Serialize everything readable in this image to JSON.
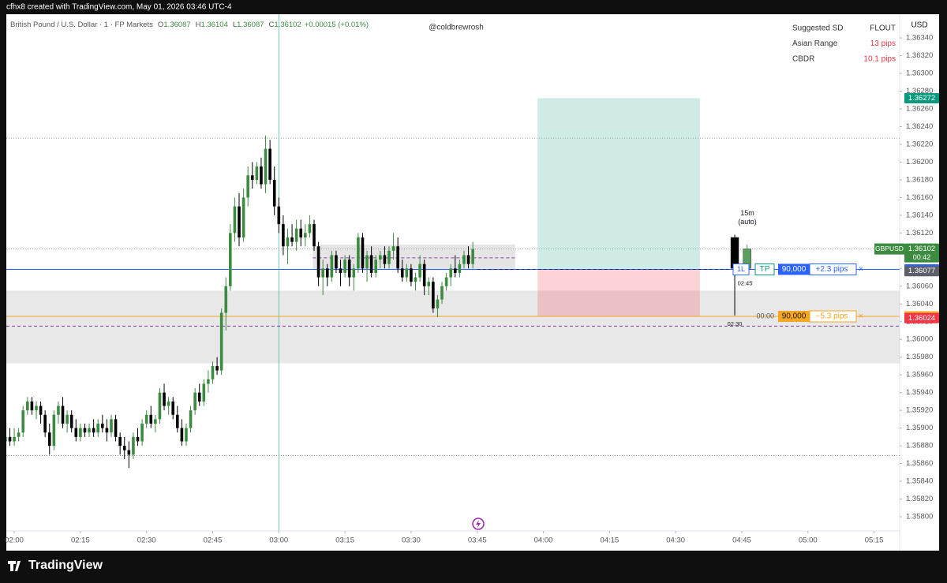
{
  "header": {
    "text": "cfhx8 created with TradingView.com, May 01, 2026 03:46 UTC-4"
  },
  "footer": {
    "logo": "TradingView"
  },
  "chart_data": {
    "type": "candlestick",
    "title": "British Pound / U.S. Dollar · 1 · FP Markets",
    "legend": [
      {
        "key": "O",
        "value": 1.36087
      },
      {
        "key": "H",
        "value": 1.36104
      },
      {
        "key": "L",
        "value": 1.36087
      },
      {
        "key": "C",
        "value": 1.36102
      }
    ],
    "change": "+0.00015 (+0.01%)",
    "watermark": "@coldbrewrosh",
    "currency": "USD",
    "info_table": [
      [
        "Suggested SD",
        "FLOUT"
      ],
      [
        "Asian Range",
        "13 pips"
      ],
      [
        "CBDR",
        "10.1 pips"
      ]
    ],
    "up_color": "#3d8b40",
    "down_color": "#000000",
    "ohlc": [
      [
        1.35885,
        1.35895,
        1.35875,
        1.3589
      ],
      [
        1.3589,
        1.359,
        1.3588,
        1.35885
      ],
      [
        1.35885,
        1.359,
        1.3588,
        1.3589
      ],
      [
        1.3589,
        1.359,
        1.35885,
        1.35895
      ],
      [
        1.35895,
        1.35925,
        1.3589,
        1.3592
      ],
      [
        1.3592,
        1.35935,
        1.35915,
        1.3593
      ],
      [
        1.3593,
        1.35935,
        1.35915,
        1.3592
      ],
      [
        1.3592,
        1.3593,
        1.3591,
        1.35925
      ],
      [
        1.35925,
        1.3593,
        1.35905,
        1.35915
      ],
      [
        1.35915,
        1.3592,
        1.3589,
        1.35895
      ],
      [
        1.35895,
        1.35905,
        1.3587,
        1.3588
      ],
      [
        1.3588,
        1.3592,
        1.35875,
        1.35915
      ],
      [
        1.35915,
        1.3593,
        1.35905,
        1.35925
      ],
      [
        1.35925,
        1.35935,
        1.359,
        1.35905
      ],
      [
        1.35905,
        1.3592,
        1.35895,
        1.35915
      ],
      [
        1.35915,
        1.3592,
        1.35895,
        1.359
      ],
      [
        1.359,
        1.3591,
        1.35885,
        1.3589
      ],
      [
        1.3589,
        1.35905,
        1.35885,
        1.359
      ],
      [
        1.359,
        1.35905,
        1.3589,
        1.35895
      ],
      [
        1.35895,
        1.35905,
        1.3589,
        1.359
      ],
      [
        1.359,
        1.3591,
        1.3589,
        1.35895
      ],
      [
        1.35895,
        1.3591,
        1.3589,
        1.35905
      ],
      [
        1.35905,
        1.35915,
        1.35895,
        1.359
      ],
      [
        1.359,
        1.3591,
        1.35885,
        1.35895
      ],
      [
        1.35895,
        1.35915,
        1.3589,
        1.3591
      ],
      [
        1.3591,
        1.35915,
        1.35885,
        1.3589
      ],
      [
        1.3589,
        1.35895,
        1.3587,
        1.3588
      ],
      [
        1.3588,
        1.3589,
        1.35865,
        1.35875
      ],
      [
        1.35875,
        1.35885,
        1.35855,
        1.3587
      ],
      [
        1.3587,
        1.35895,
        1.35865,
        1.3589
      ],
      [
        1.3589,
        1.359,
        1.3588,
        1.35885
      ],
      [
        1.35885,
        1.3591,
        1.3588,
        1.35905
      ],
      [
        1.35905,
        1.3592,
        1.359,
        1.35915
      ],
      [
        1.35915,
        1.35925,
        1.359,
        1.35905
      ],
      [
        1.35905,
        1.35915,
        1.35895,
        1.3591
      ],
      [
        1.3591,
        1.35945,
        1.35905,
        1.3594
      ],
      [
        1.3594,
        1.3595,
        1.3592,
        1.35925
      ],
      [
        1.35925,
        1.35935,
        1.35915,
        1.3593
      ],
      [
        1.3593,
        1.35935,
        1.3591,
        1.35915
      ],
      [
        1.35915,
        1.35925,
        1.35895,
        1.359
      ],
      [
        1.359,
        1.3591,
        1.3588,
        1.35885
      ],
      [
        1.35885,
        1.35905,
        1.3588,
        1.359
      ],
      [
        1.359,
        1.35925,
        1.35895,
        1.3592
      ],
      [
        1.3592,
        1.35945,
        1.35915,
        1.3594
      ],
      [
        1.3594,
        1.3595,
        1.35925,
        1.3593
      ],
      [
        1.3593,
        1.35955,
        1.35925,
        1.3595
      ],
      [
        1.3595,
        1.35965,
        1.3594,
        1.35955
      ],
      [
        1.35955,
        1.35975,
        1.3595,
        1.3597
      ],
      [
        1.3597,
        1.3598,
        1.3596,
        1.35965
      ],
      [
        1.35965,
        1.36035,
        1.3596,
        1.3603
      ],
      [
        1.3603,
        1.3607,
        1.3601,
        1.3606
      ],
      [
        1.3606,
        1.3613,
        1.36055,
        1.3612
      ],
      [
        1.3612,
        1.3616,
        1.3611,
        1.3615
      ],
      [
        1.3615,
        1.36165,
        1.36105,
        1.36115
      ],
      [
        1.36115,
        1.3617,
        1.3611,
        1.3616
      ],
      [
        1.3616,
        1.36195,
        1.3615,
        1.36185
      ],
      [
        1.36185,
        1.362,
        1.3617,
        1.3618
      ],
      [
        1.3618,
        1.362,
        1.36175,
        1.36195
      ],
      [
        1.36195,
        1.36205,
        1.3617,
        1.36175
      ],
      [
        1.36175,
        1.3623,
        1.36165,
        1.36215
      ],
      [
        1.36215,
        1.36225,
        1.36175,
        1.3618
      ],
      [
        1.3618,
        1.36195,
        1.3614,
        1.3615
      ],
      [
        1.3615,
        1.3616,
        1.3612,
        1.3613
      ],
      [
        1.3613,
        1.3614,
        1.36095,
        1.36105
      ],
      [
        1.36105,
        1.36125,
        1.36085,
        1.36115
      ],
      [
        1.36115,
        1.3613,
        1.36105,
        1.3611
      ],
      [
        1.3611,
        1.36135,
        1.361,
        1.36125
      ],
      [
        1.36125,
        1.36135,
        1.36105,
        1.36115
      ],
      [
        1.36115,
        1.3613,
        1.36105,
        1.3612
      ],
      [
        1.3612,
        1.3614,
        1.36115,
        1.3613
      ],
      [
        1.3613,
        1.36135,
        1.361,
        1.36105
      ],
      [
        1.36105,
        1.3611,
        1.3606,
        1.3607
      ],
      [
        1.3607,
        1.3609,
        1.3605,
        1.3608
      ],
      [
        1.3608,
        1.36085,
        1.3606,
        1.3607
      ],
      [
        1.3607,
        1.361,
        1.36065,
        1.36095
      ],
      [
        1.36095,
        1.361,
        1.36075,
        1.3608
      ],
      [
        1.3608,
        1.3609,
        1.3606,
        1.36075
      ],
      [
        1.36075,
        1.36095,
        1.3607,
        1.3609
      ],
      [
        1.3609,
        1.36095,
        1.3606,
        1.3607
      ],
      [
        1.3607,
        1.36085,
        1.36055,
        1.3608
      ],
      [
        1.3608,
        1.3612,
        1.36075,
        1.36115
      ],
      [
        1.36115,
        1.3612,
        1.36075,
        1.3608
      ],
      [
        1.3608,
        1.361,
        1.36065,
        1.36095
      ],
      [
        1.36095,
        1.36105,
        1.3607,
        1.36075
      ],
      [
        1.36075,
        1.36095,
        1.3607,
        1.3609
      ],
      [
        1.3609,
        1.361,
        1.3608,
        1.36095
      ],
      [
        1.36095,
        1.36105,
        1.3608,
        1.36085
      ],
      [
        1.36085,
        1.36105,
        1.3608,
        1.361
      ],
      [
        1.361,
        1.3612,
        1.3609,
        1.36105
      ],
      [
        1.36105,
        1.36115,
        1.36075,
        1.3608
      ],
      [
        1.3608,
        1.3609,
        1.36065,
        1.3607
      ],
      [
        1.3607,
        1.36085,
        1.36065,
        1.3608
      ],
      [
        1.3608,
        1.36085,
        1.3606,
        1.36065
      ],
      [
        1.36065,
        1.36075,
        1.36055,
        1.3607
      ],
      [
        1.3607,
        1.36095,
        1.36065,
        1.36085
      ],
      [
        1.36085,
        1.3609,
        1.3605,
        1.3606
      ],
      [
        1.3606,
        1.3607,
        1.3605,
        1.36065
      ],
      [
        1.36065,
        1.3607,
        1.3603,
        1.36035
      ],
      [
        1.36035,
        1.3605,
        1.36025,
        1.36045
      ],
      [
        1.36045,
        1.36065,
        1.3604,
        1.3606
      ],
      [
        1.3606,
        1.36075,
        1.36055,
        1.3607
      ],
      [
        1.3607,
        1.36085,
        1.3606,
        1.3608
      ],
      [
        1.3608,
        1.36095,
        1.3607,
        1.36075
      ],
      [
        1.36075,
        1.3609,
        1.3607,
        1.36085
      ],
      [
        1.36085,
        1.361,
        1.3608,
        1.36095
      ],
      [
        1.36095,
        1.36105,
        1.3608,
        1.36085
      ],
      [
        1.36085,
        1.3611,
        1.3608,
        1.36102
      ]
    ],
    "xlim": [
      0.2,
      202.8
    ],
    "xticks": [
      {
        "value": 2,
        "label": "02:00"
      },
      {
        "value": 17,
        "label": "02:15"
      },
      {
        "value": 32,
        "label": "02:30"
      },
      {
        "value": 47,
        "label": "02:45"
      },
      {
        "value": 62,
        "label": "03:00"
      },
      {
        "value": 77,
        "label": "03:15"
      },
      {
        "value": 92,
        "label": "03:30"
      },
      {
        "value": 107,
        "label": "03:45"
      },
      {
        "value": 122,
        "label": "04:00"
      },
      {
        "value": 137,
        "label": "04:15"
      },
      {
        "value": 152,
        "label": "04:30"
      },
      {
        "value": 167,
        "label": "04:45"
      },
      {
        "value": 182,
        "label": "05:00"
      },
      {
        "value": 197,
        "label": "05:15"
      }
    ],
    "ylim": [
      1.35784,
      1.36365
    ],
    "yticks": [
      {
        "value": 1.358,
        "label": "1.35800"
      },
      {
        "value": 1.3582,
        "label": "1.35820"
      },
      {
        "value": 1.3584,
        "label": "1.35840"
      },
      {
        "value": 1.3586,
        "label": "1.35860"
      },
      {
        "value": 1.3588,
        "label": "1.35880"
      },
      {
        "value": 1.359,
        "label": "1.35900"
      },
      {
        "value": 1.3592,
        "label": "1.35920"
      },
      {
        "value": 1.3594,
        "label": "1.35940"
      },
      {
        "value": 1.3596,
        "label": "1.35960"
      },
      {
        "value": 1.3598,
        "label": "1.35980"
      },
      {
        "value": 1.36,
        "label": "1.36000"
      },
      {
        "value": 1.3602,
        "label": "1.36020"
      },
      {
        "value": 1.3604,
        "label": "1.36040"
      },
      {
        "value": 1.3606,
        "label": "1.36060"
      },
      {
        "value": 1.3608,
        "label": "1.36080"
      },
      {
        "value": 1.361,
        "label": "1.36100"
      },
      {
        "value": 1.3612,
        "label": "1.36120"
      },
      {
        "value": 1.3614,
        "label": "1.36140"
      },
      {
        "value": 1.3616,
        "label": "1.36160"
      },
      {
        "value": 1.3618,
        "label": "1.36180"
      },
      {
        "value": 1.362,
        "label": "1.36200"
      },
      {
        "value": 1.3622,
        "label": "1.36220"
      },
      {
        "value": 1.3624,
        "label": "1.36240"
      },
      {
        "value": 1.3626,
        "label": "1.36260"
      },
      {
        "value": 1.3628,
        "label": "1.36280"
      },
      {
        "value": 1.363,
        "label": "1.36300"
      },
      {
        "value": 1.3632,
        "label": "1.36320"
      },
      {
        "value": 1.3634,
        "label": "1.36340"
      }
    ],
    "grid": false,
    "cursor_x": 62,
    "zones": [
      {
        "x": [
          0.2,
          202.8
        ],
        "y": [
          1.35973,
          1.36055
        ],
        "color": "rgba(190,190,190,0.35)"
      },
      {
        "x": [
          69.7,
          115.6
        ],
        "y": [
          1.36078,
          1.36107
        ],
        "color": "rgba(170,170,170,0.3)"
      },
      {
        "x": [
          120.7,
          157.5
        ],
        "y": [
          1.36079,
          1.36272
        ],
        "color": "rgba(8,153,129,0.2)"
      },
      {
        "x": [
          120.7,
          157.5
        ],
        "y": [
          1.36026,
          1.36079
        ],
        "color": "rgba(242,54,69,0.22)"
      }
    ],
    "levels": [
      {
        "value": 1.36227,
        "x": [
          0.2,
          202.8
        ],
        "style": "dotted",
        "color": "#9a9a9a"
      },
      {
        "value": 1.36102,
        "x": [
          0.2,
          202.8
        ],
        "style": "dotted",
        "color": "#9a9a9a"
      },
      {
        "value": 1.35869,
        "x": [
          0.2,
          202.8
        ],
        "style": "dotted",
        "color": "#9a9a9a"
      },
      {
        "value": 1.36092,
        "x": [
          69.7,
          115.6
        ],
        "style": "dashed",
        "color": "#8e44ad"
      },
      {
        "value": 1.36079,
        "x": [
          0.2,
          202.8
        ],
        "style": "solid",
        "color": "#2962ff"
      },
      {
        "value": 1.36026,
        "x": [
          0.2,
          202.8
        ],
        "style": "solid",
        "color": "#f5a623"
      },
      {
        "value": 1.36015,
        "x": [
          0.2,
          202.8
        ],
        "style": "dashed",
        "color": "#7b3fa0"
      },
      {
        "value": 1.36079,
        "x": [
          107,
          164
        ],
        "style": "dashed",
        "color": "#1a237e"
      }
    ],
    "htf": {
      "label": "15m",
      "sublabel": "(auto)",
      "timer": "02:30",
      "candles": [
        {
          "x": 165.4,
          "ohlc": [
            1.36115,
            1.36118,
            1.36027,
            1.3608
          ]
        },
        {
          "x": 168.2,
          "ohlc": [
            1.3608,
            1.36107,
            1.36078,
            1.36102
          ]
        }
      ]
    },
    "positions": [
      {
        "side": "1L",
        "tag": "TP",
        "qty": "90,000",
        "pnl": "+2.3 pips",
        "close": "×",
        "price": 1.36079,
        "color": "#2962ff",
        "timer": "02:45"
      },
      {
        "qty": "90,000",
        "pnl": "−5.3 pips",
        "close": "×",
        "price": 1.36026,
        "color": "#f5a623",
        "timer": "00:00"
      }
    ],
    "price_labels": [
      {
        "value": 1.36272,
        "color": "#089981"
      },
      {
        "value": 1.36102,
        "color": "#3d8b40",
        "tag": "GBPUSD",
        "sub": "00:42"
      },
      {
        "value": 1.36079,
        "color": "#2962ff"
      },
      {
        "value": 1.36077,
        "color": "#5d606b"
      },
      {
        "value": 1.36026,
        "color": "#f5a623"
      },
      {
        "value": 1.36024,
        "color": "#f23645"
      }
    ]
  }
}
